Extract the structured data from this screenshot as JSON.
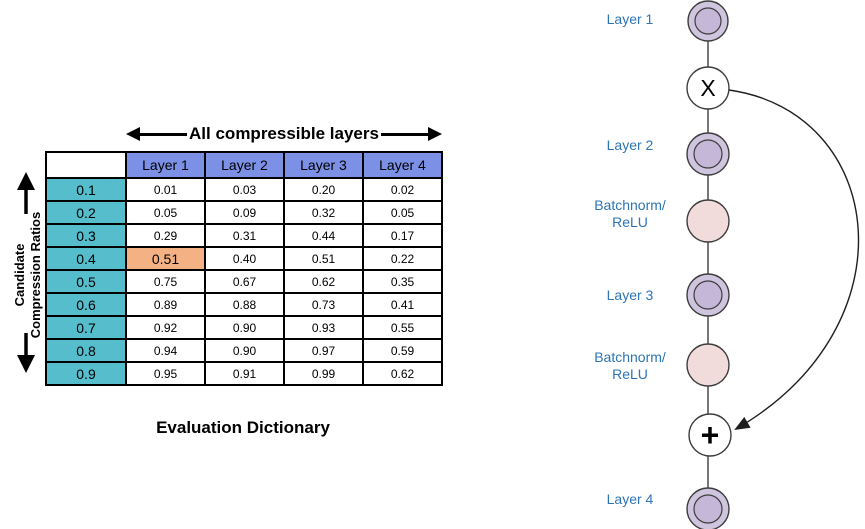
{
  "table_panel": {
    "top_axis_label": "All compressible layers",
    "side_axis_label_line1": "Candidate",
    "side_axis_label_line2": "Compression Ratios",
    "caption": "Evaluation Dictionary",
    "corner_cell": "",
    "columns": [
      "Layer 1",
      "Layer 2",
      "Layer 3",
      "Layer 4"
    ],
    "rows": [
      {
        "ratio": "0.1",
        "values": [
          "0.01",
          "0.03",
          "0.20",
          "0.02"
        ]
      },
      {
        "ratio": "0.2",
        "values": [
          "0.05",
          "0.09",
          "0.32",
          "0.05"
        ]
      },
      {
        "ratio": "0.3",
        "values": [
          "0.29",
          "0.31",
          "0.44",
          "0.17"
        ]
      },
      {
        "ratio": "0.4",
        "values": [
          "0.51",
          "0.40",
          "0.51",
          "0.22"
        ]
      },
      {
        "ratio": "0.5",
        "values": [
          "0.75",
          "0.67",
          "0.62",
          "0.35"
        ]
      },
      {
        "ratio": "0.6",
        "values": [
          "0.89",
          "0.88",
          "0.73",
          "0.41"
        ]
      },
      {
        "ratio": "0.7",
        "values": [
          "0.92",
          "0.90",
          "0.93",
          "0.55"
        ]
      },
      {
        "ratio": "0.8",
        "values": [
          "0.94",
          "0.90",
          "0.97",
          "0.59"
        ]
      },
      {
        "ratio": "0.9",
        "values": [
          "0.95",
          "0.91",
          "0.99",
          "0.62"
        ]
      }
    ],
    "highlight": {
      "row": 3,
      "col": 0
    },
    "colors": {
      "header_bg": "#7C90E6",
      "ratio_bg": "#55BDCB",
      "highlight_bg": "#F4B183"
    }
  },
  "diagram": {
    "label_layer1": "Layer 1",
    "op_multiply": "X",
    "label_layer2": "Layer 2",
    "label_bn1_line1": "Batchnorm/",
    "label_bn1_line2": "ReLU",
    "label_layer3": "Layer 3",
    "label_bn2_line1": "Batchnorm/",
    "label_bn2_line2": "ReLU",
    "op_add": "+",
    "label_layer4": "Layer 4",
    "colors": {
      "layer_node_fill": "#CFC5DF",
      "layer_node_inner_fill": "#C5B7D8",
      "batchnorm_fill": "#F2DCDB",
      "label_text": "#2E75B6"
    }
  }
}
